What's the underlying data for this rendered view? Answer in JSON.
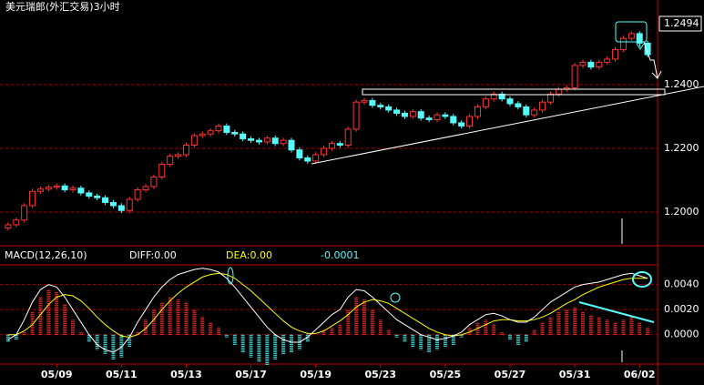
{
  "header": {
    "title": "美元瑞郎(外汇交易)3小时"
  },
  "chart_data": [
    {
      "type": "candlestick",
      "xlim": [
        -1,
        80
      ],
      "ylim": [
        1.19,
        1.2614
      ],
      "yticks": [
        {
          "value": 1.2,
          "label": "1.2000"
        },
        {
          "value": 1.22,
          "label": "1.2200"
        },
        {
          "value": 1.24,
          "label": "1.2400"
        }
      ],
      "grid": true,
      "up_color": "#ff3232",
      "down_color": "#54fcfc",
      "open": [
        1.195,
        1.196,
        1.1975,
        1.202,
        1.2065,
        1.2072,
        1.2078,
        1.2082,
        1.207,
        1.2075,
        1.206,
        1.205,
        1.2045,
        1.203,
        1.202,
        1.2005,
        1.204,
        1.207,
        1.208,
        1.211,
        1.215,
        1.2175,
        1.218,
        1.221,
        1.224,
        1.2245,
        1.2255,
        1.227,
        1.225,
        1.2245,
        1.223,
        1.2225,
        1.222,
        1.2232,
        1.2215,
        1.2225,
        1.2195,
        1.217,
        1.216,
        1.218,
        1.22,
        1.2215,
        1.221,
        1.226,
        1.2345,
        1.235,
        1.2335,
        1.233,
        1.232,
        1.231,
        1.23,
        1.2315,
        1.2295,
        1.229,
        1.2305,
        1.23,
        1.228,
        1.227,
        1.23,
        1.233,
        1.2355,
        1.237,
        1.2355,
        1.234,
        1.233,
        1.2305,
        1.232,
        1.2345,
        1.237,
        1.2385,
        1.239,
        1.246,
        1.247,
        1.2455,
        1.247,
        1.248,
        1.251,
        1.2545,
        1.256,
        1.253
      ],
      "high": [
        1.1968,
        1.1983,
        1.2028,
        1.2073,
        1.208,
        1.2086,
        1.209,
        1.209,
        1.2083,
        1.2083,
        1.2068,
        1.2058,
        1.2053,
        1.2038,
        1.2028,
        1.2048,
        1.2078,
        1.2088,
        1.2118,
        1.2158,
        1.2183,
        1.2188,
        1.2218,
        1.2248,
        1.2253,
        1.2263,
        1.2278,
        1.2278,
        1.2258,
        1.2253,
        1.2238,
        1.2233,
        1.224,
        1.224,
        1.2233,
        1.2233,
        1.2203,
        1.2178,
        1.2188,
        1.2208,
        1.2223,
        1.2223,
        1.2268,
        1.2353,
        1.2358,
        1.2358,
        1.2343,
        1.2338,
        1.2328,
        1.2318,
        1.2323,
        1.2323,
        1.2303,
        1.2313,
        1.2313,
        1.2308,
        1.2288,
        1.2308,
        1.2338,
        1.2363,
        1.2378,
        1.2378,
        1.2363,
        1.2348,
        1.2338,
        1.2328,
        1.2353,
        1.2378,
        1.2393,
        1.2398,
        1.2468,
        1.2478,
        1.2478,
        1.2478,
        1.2488,
        1.2518,
        1.2553,
        1.2568,
        1.2568,
        1.2538
      ],
      "low": [
        1.1942,
        1.1952,
        1.1967,
        1.2012,
        1.2057,
        1.2064,
        1.207,
        1.2062,
        1.2062,
        1.2052,
        1.2042,
        1.2037,
        1.2022,
        1.2012,
        1.1997,
        1.1997,
        1.2032,
        1.2062,
        1.2072,
        1.2102,
        1.2142,
        1.2167,
        1.2172,
        1.2202,
        1.2232,
        1.2237,
        1.2247,
        1.2242,
        1.2237,
        1.2222,
        1.2217,
        1.2212,
        1.2212,
        1.2207,
        1.2207,
        1.2187,
        1.2162,
        1.2152,
        1.2152,
        1.2172,
        1.2192,
        1.2202,
        1.2202,
        1.2252,
        1.2337,
        1.2327,
        1.2322,
        1.2312,
        1.2302,
        1.2292,
        1.2292,
        1.2287,
        1.2282,
        1.2282,
        1.2292,
        1.2272,
        1.2262,
        1.2262,
        1.2292,
        1.2322,
        1.2347,
        1.2347,
        1.2332,
        1.2322,
        1.2297,
        1.2297,
        1.2312,
        1.2337,
        1.2362,
        1.2377,
        1.2382,
        1.2452,
        1.2447,
        1.2447,
        1.2462,
        1.2472,
        1.2502,
        1.2537,
        1.2522,
        1.2486
      ],
      "close": [
        1.196,
        1.1975,
        1.202,
        1.2065,
        1.2072,
        1.2078,
        1.2082,
        1.207,
        1.2075,
        1.206,
        1.205,
        1.2045,
        1.203,
        1.202,
        1.2005,
        1.204,
        1.207,
        1.208,
        1.211,
        1.215,
        1.2175,
        1.218,
        1.221,
        1.224,
        1.2245,
        1.2255,
        1.227,
        1.225,
        1.2245,
        1.223,
        1.2225,
        1.222,
        1.2232,
        1.2215,
        1.2225,
        1.2195,
        1.217,
        1.216,
        1.218,
        1.22,
        1.2215,
        1.221,
        1.226,
        1.2345,
        1.235,
        1.2335,
        1.233,
        1.232,
        1.231,
        1.23,
        1.2315,
        1.2295,
        1.229,
        1.2305,
        1.23,
        1.228,
        1.227,
        1.23,
        1.233,
        1.2355,
        1.237,
        1.2355,
        1.234,
        1.233,
        1.2305,
        1.232,
        1.2345,
        1.237,
        1.2385,
        1.239,
        1.246,
        1.247,
        1.2455,
        1.247,
        1.248,
        1.251,
        1.2545,
        1.256,
        1.253,
        1.2494
      ]
    },
    {
      "type": "macd",
      "title": "MACD(12,26,10)",
      "diff_label": "DIFF:0.00",
      "dea_label": "DEA:0.00",
      "macd": -0.0001,
      "xlim": [
        -1,
        80
      ],
      "ylim": [
        -0.0022,
        0.0055
      ],
      "yticks": [
        {
          "value": 0,
          "label": "0.0000"
        },
        {
          "value": 0.002,
          "label": "0.0020"
        },
        {
          "value": 0.004,
          "label": "0.0040"
        }
      ],
      "xticks": [
        {
          "value": 6,
          "label": "05/09"
        },
        {
          "value": 14,
          "label": "05/11"
        },
        {
          "value": 22,
          "label": "05/13"
        },
        {
          "value": 30,
          "label": "05/17"
        },
        {
          "value": 38,
          "label": "05/19"
        },
        {
          "value": 46,
          "label": "05/23"
        },
        {
          "value": 54,
          "label": "05/25"
        },
        {
          "value": 62,
          "label": "05/27"
        },
        {
          "value": 70,
          "label": "05/31"
        },
        {
          "value": 78,
          "label": "06/02"
        }
      ],
      "grid": true,
      "up_color": "#ff3232",
      "down_color": "#54fcfc",
      "diff_color": "#ffffff",
      "dea_color": "#ffff00",
      "histogram": [
        -0.0006,
        -0.0004,
        0.0002,
        0.0018,
        0.003,
        0.0036,
        0.0034,
        0.0024,
        0.0012,
        0.0002,
        -0.0006,
        -0.0012,
        -0.0016,
        -0.002,
        -0.0018,
        -0.001,
        0.0002,
        0.0012,
        0.002,
        0.0026,
        0.003,
        0.0028,
        0.0026,
        0.002,
        0.0014,
        0.001,
        0.0006,
        -0.0002,
        -0.0008,
        -0.0014,
        -0.0018,
        -0.0022,
        -0.0024,
        -0.002,
        -0.0016,
        -0.0014,
        -0.0012,
        -0.0006,
        0.0,
        0.0004,
        0.0006,
        0.0008,
        0.002,
        0.003,
        0.0028,
        0.002,
        0.0012,
        0.0004,
        -0.0002,
        -0.0006,
        -0.001,
        -0.0012,
        -0.0014,
        -0.0012,
        -0.001,
        -0.0008,
        -0.0002,
        0.0006,
        0.001,
        0.0012,
        0.0008,
        0.0002,
        -0.0004,
        -0.0008,
        -0.0006,
        0.0004,
        0.001,
        0.0014,
        0.0018,
        0.002,
        0.0022,
        0.0018,
        0.0016,
        0.0014,
        0.0012,
        0.001,
        0.0012,
        0.0014,
        0.001,
        0.0006
      ],
      "diff": [
        -0.0004,
        0.0,
        0.0012,
        0.0026,
        0.0036,
        0.004,
        0.0038,
        0.003,
        0.002,
        0.001,
        0.0,
        -0.0008,
        -0.0012,
        -0.0014,
        -0.001,
        -0.0002,
        0.001,
        0.002,
        0.003,
        0.0038,
        0.0044,
        0.0048,
        0.005,
        0.0052,
        0.0053,
        0.0052,
        0.005,
        0.0045,
        0.0038,
        0.003,
        0.0022,
        0.0014,
        0.0006,
        0.0,
        -0.0004,
        -0.0006,
        -0.0006,
        -0.0002,
        0.0004,
        0.001,
        0.0016,
        0.002,
        0.003,
        0.0036,
        0.0035,
        0.003,
        0.0024,
        0.0018,
        0.0012,
        0.0008,
        0.0004,
        0.0,
        -0.0002,
        -0.0004,
        -0.0003,
        -0.0001,
        0.0002,
        0.0008,
        0.0012,
        0.0016,
        0.0017,
        0.0015,
        0.0012,
        0.001,
        0.001,
        0.0014,
        0.002,
        0.0026,
        0.003,
        0.0034,
        0.0038,
        0.004,
        0.0041,
        0.0042,
        0.0044,
        0.0046,
        0.0048,
        0.0049,
        0.0047,
        0.0045
      ],
      "dea": [
        0.0,
        0.0,
        0.0003,
        0.0008,
        0.0016,
        0.0024,
        0.003,
        0.0032,
        0.0031,
        0.0027,
        0.0021,
        0.0014,
        0.0008,
        0.0003,
        -0.0001,
        -0.0002,
        0.0,
        0.0005,
        0.0012,
        0.002,
        0.0027,
        0.0033,
        0.0038,
        0.0042,
        0.0046,
        0.0048,
        0.0049,
        0.0048,
        0.0045,
        0.004,
        0.0035,
        0.0029,
        0.0023,
        0.0017,
        0.0011,
        0.0006,
        0.0003,
        0.0001,
        0.0001,
        0.0003,
        0.0007,
        0.0011,
        0.0016,
        0.0022,
        0.0026,
        0.0028,
        0.0027,
        0.0025,
        0.0021,
        0.0017,
        0.0013,
        0.0009,
        0.0005,
        0.0002,
        0.0,
        -0.0001,
        0.0,
        0.0002,
        0.0005,
        0.0008,
        0.0011,
        0.0012,
        0.0012,
        0.0011,
        0.0011,
        0.0012,
        0.0014,
        0.0017,
        0.0021,
        0.0025,
        0.0028,
        0.0032,
        0.0035,
        0.0038,
        0.004,
        0.0042,
        0.0044,
        0.0045,
        0.0045,
        0.0045
      ]
    }
  ]
}
